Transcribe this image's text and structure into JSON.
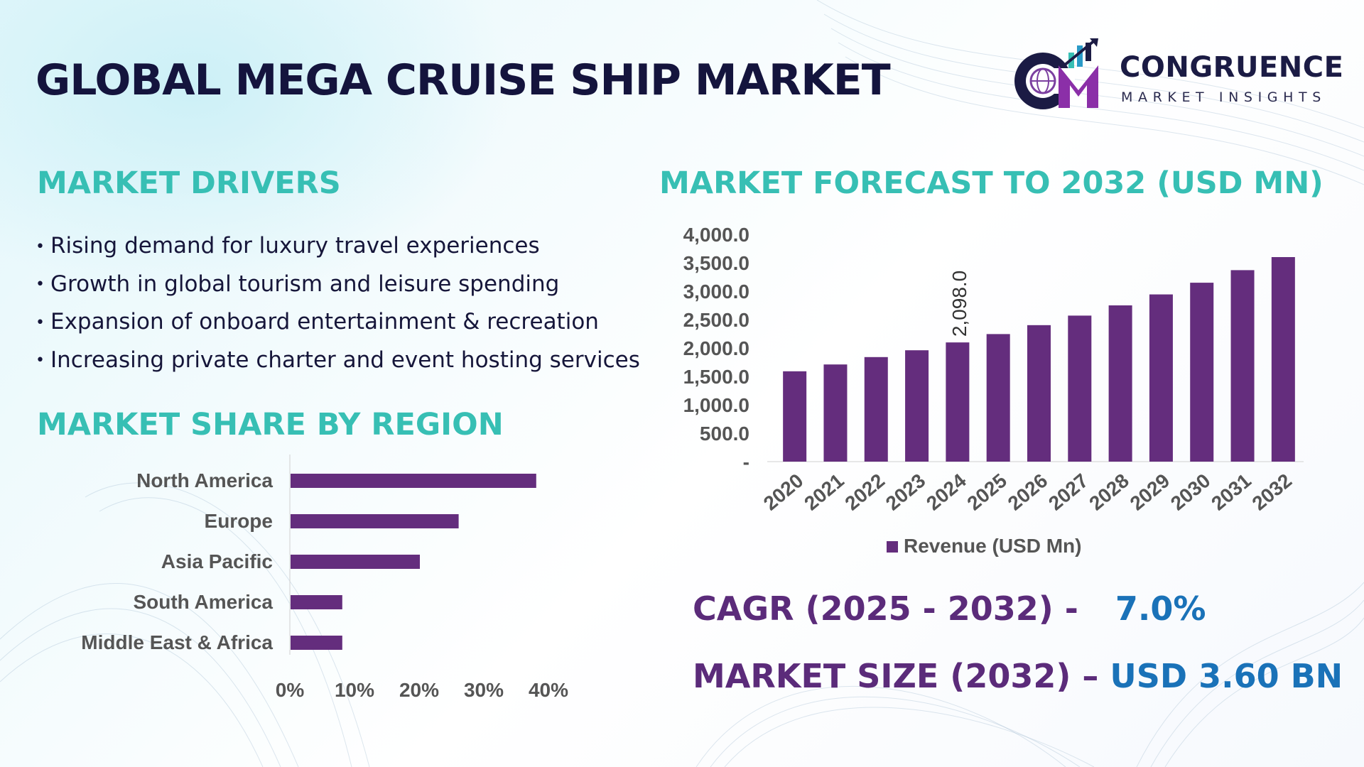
{
  "header": {
    "title": "GLOBAL MEGA CRUISE SHIP MARKET"
  },
  "logo": {
    "name": "CONGRUENCE",
    "tagline": "MARKET INSIGHTS"
  },
  "drivers": {
    "heading": "MARKET DRIVERS",
    "items": [
      "Rising demand for luxury travel experiences",
      "Growth in global tourism and leisure spending",
      "Expansion of onboard entertainment & recreation",
      "Increasing private charter and event hosting services"
    ]
  },
  "region_section": {
    "heading": "MARKET SHARE BY REGION"
  },
  "forecast_section": {
    "heading": "MARKET FORECAST TO 2032 (USD MN)"
  },
  "kpis": {
    "cagr_label": "CAGR (2025 - 2032) -",
    "cagr_value": "7.0%",
    "size_label": "MARKET SIZE (2032) –",
    "size_value": "USD 3.60 BN"
  },
  "colors": {
    "bar": "#642d7d",
    "heading": "#37bfb4",
    "title": "#14143d",
    "kpi_label": "#5b2b7a",
    "kpi_value": "#1a72b8",
    "axis_text": "#555555"
  },
  "chart_data": [
    {
      "type": "bar",
      "orientation": "horizontal",
      "categories": [
        "North America",
        "Europe",
        "Asia Pacific",
        "South America",
        "Middle East & Africa"
      ],
      "values": [
        38,
        26,
        20,
        8,
        8
      ],
      "xlim": [
        0,
        40
      ],
      "xticks": [
        "0%",
        "10%",
        "20%",
        "30%",
        "40%"
      ],
      "grid": false,
      "legend": false
    },
    {
      "type": "bar",
      "categories": [
        "2020",
        "2021",
        "2022",
        "2023",
        "2024",
        "2025",
        "2026",
        "2027",
        "2028",
        "2029",
        "2030",
        "2031",
        "2032"
      ],
      "series": [
        {
          "name": "Revenue (USD Mn)",
          "values": [
            1590,
            1710,
            1840,
            1960,
            2098,
            2245,
            2402,
            2570,
            2750,
            2943,
            3149,
            3370,
            3600
          ]
        }
      ],
      "data_labels": {
        "2024": "2,098.0"
      },
      "ylim": [
        0,
        4000
      ],
      "yticks": [
        "-",
        "500.0",
        "1,000.0",
        "1,500.0",
        "2,000.0",
        "2,500.0",
        "3,000.0",
        "3,500.0",
        "4,000.0"
      ],
      "grid": false,
      "legend": "bottom"
    }
  ]
}
